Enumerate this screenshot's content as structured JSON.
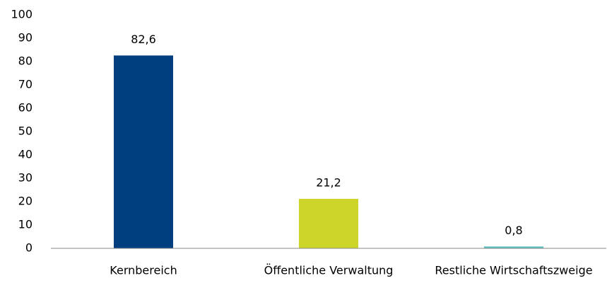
{
  "chart_data": {
    "type": "bar",
    "categories": [
      "Kernbereich",
      "Öffentliche Verwaltung",
      "Restliche Wirtschaftszweige"
    ],
    "values": [
      82.6,
      21.2,
      0.8
    ],
    "value_labels": [
      "82,6",
      "21,2",
      "0,8"
    ],
    "colors": [
      "#003f7f",
      "#cdd52b",
      "#5cbfc0"
    ],
    "ylim": [
      0,
      100
    ],
    "yticks": [
      0,
      10,
      20,
      30,
      40,
      50,
      60,
      70,
      80,
      90,
      100
    ],
    "grid": false
  }
}
